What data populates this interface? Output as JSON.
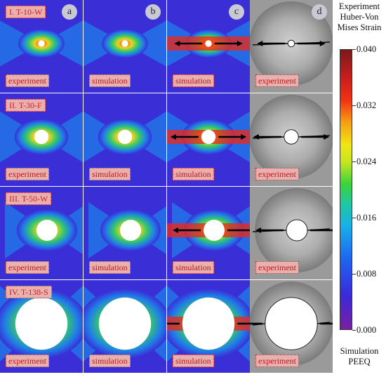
{
  "legend": {
    "top_lines": [
      "Experiment",
      "Huber-Von",
      "Mises Strain"
    ],
    "bottom_lines": [
      "Simulation",
      "PEEQ"
    ],
    "ticks": [
      "0.040",
      "0.032",
      "0.024",
      "0.016",
      "0.008",
      "0.000"
    ],
    "range": [
      0.0,
      0.04
    ]
  },
  "columns": [
    "a",
    "b",
    "c",
    "d"
  ],
  "rows": [
    {
      "title": "I. T-10-W",
      "hole": 0.08,
      "tags": [
        "experiment",
        "simulation",
        "simulation",
        "experiment"
      ]
    },
    {
      "title": "II. T-30-F",
      "hole": 0.17,
      "tags": [
        "experiment",
        "simulation",
        "simulation",
        "experiment"
      ]
    },
    {
      "title": "III. T-50-W",
      "hole": 0.25,
      "tags": [
        "experiment",
        "simulation",
        "simulation",
        "experiment"
      ]
    },
    {
      "title": "IV. T-138-S",
      "hole": 0.62,
      "tags": [
        "experiment",
        "simulation",
        "simulation",
        "experiment"
      ]
    }
  ],
  "colors": {
    "field_bg": "#3a2fd6",
    "low": "#1f7ee8",
    "mid": "#36c96a",
    "high": "#f0d21c",
    "peak": "#e62a1e",
    "tag_border": "#d42020",
    "tag_fill": "#e9b0b0"
  }
}
